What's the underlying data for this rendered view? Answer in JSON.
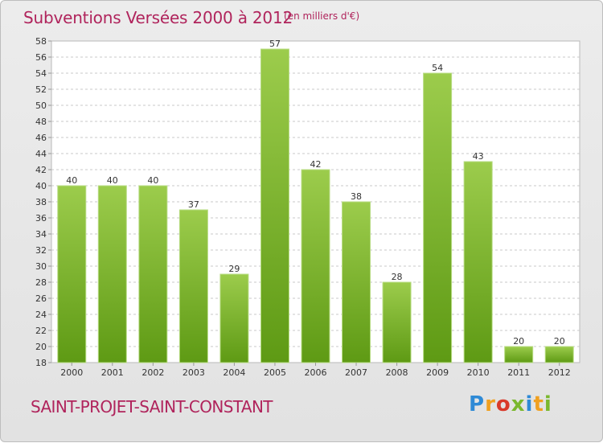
{
  "header": {
    "title": "Subventions Versées 2000 à 2012",
    "subtitle": "(en milliers d'€)"
  },
  "footer": {
    "commune": "SAINT-PROJET-SAINT-CONSTANT",
    "logo": [
      "P",
      "r",
      "o",
      "x",
      "i",
      "t",
      "i"
    ]
  },
  "colors": {
    "title": "#b0245c",
    "bar_light": "#9ccc4c",
    "bar_dark": "#5e9a14"
  },
  "chart_data": {
    "type": "bar",
    "title": "Subventions Versées 2000 à 2012",
    "subtitle": "(en milliers d'€)",
    "xlabel": "",
    "ylabel": "",
    "categories": [
      "2000",
      "2001",
      "2002",
      "2003",
      "2004",
      "2005",
      "2006",
      "2007",
      "2008",
      "2009",
      "2010",
      "2011",
      "2012"
    ],
    "values": [
      40,
      40,
      40,
      37,
      29,
      57,
      42,
      38,
      28,
      54,
      43,
      20,
      20
    ],
    "ylim": [
      18,
      58
    ],
    "yticks": [
      18,
      20,
      22,
      24,
      26,
      28,
      30,
      32,
      34,
      36,
      38,
      40,
      42,
      44,
      46,
      48,
      50,
      52,
      54,
      56,
      58
    ],
    "grid": "horizontal-dashed",
    "legend": "none"
  }
}
